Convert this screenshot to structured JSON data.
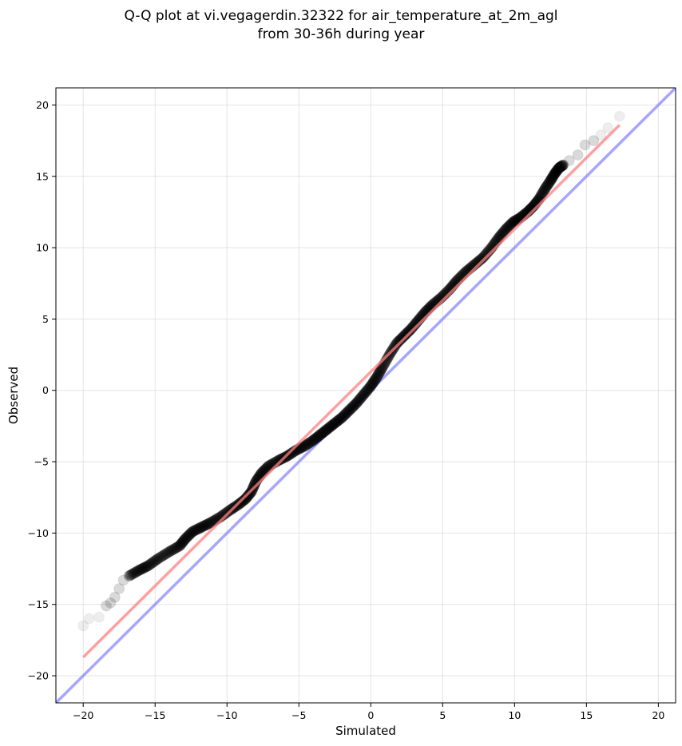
{
  "chart_data": {
    "type": "scatter",
    "title_lines": [
      "Q-Q plot at vi.vegagerdin.32322 for air_temperature_at_2m_agl",
      "from 30-36h during year"
    ],
    "xlabel": "Simulated",
    "ylabel": "Observed",
    "xlim": [
      -21.9,
      21.2
    ],
    "ylim": [
      -21.9,
      21.2
    ],
    "xticks": [
      -20,
      -15,
      -10,
      -5,
      0,
      5,
      10,
      15,
      20
    ],
    "yticks": [
      -20,
      -15,
      -10,
      -5,
      0,
      5,
      10,
      15,
      20
    ],
    "tick_labels": [
      "−20",
      "−15",
      "−10",
      "−5",
      "0",
      "5",
      "10",
      "15",
      "20"
    ],
    "grid": true,
    "series": [
      {
        "kind": "quantile-points",
        "color": "#000000",
        "points": [
          [
            -20.0,
            -16.5
          ],
          [
            -19.6,
            -16.0
          ],
          [
            -18.9,
            -15.9
          ],
          [
            -18.4,
            -15.1
          ],
          [
            -18.1,
            -14.9
          ],
          [
            -17.8,
            -14.5
          ],
          [
            -17.5,
            -13.9
          ],
          [
            -17.2,
            -13.3
          ],
          [
            -16.8,
            -13.0
          ],
          [
            -16.1,
            -12.6
          ],
          [
            -15.5,
            -12.3
          ],
          [
            -14.8,
            -11.8
          ],
          [
            -14.0,
            -11.3
          ],
          [
            -13.3,
            -10.9
          ],
          [
            -12.9,
            -10.4
          ],
          [
            -12.4,
            -9.9
          ],
          [
            -11.8,
            -9.6
          ],
          [
            -11.2,
            -9.3
          ],
          [
            -10.5,
            -8.9
          ],
          [
            -9.8,
            -8.4
          ],
          [
            -9.2,
            -8.0
          ],
          [
            -8.7,
            -7.6
          ],
          [
            -8.3,
            -7.1
          ],
          [
            -8.0,
            -6.4
          ],
          [
            -7.6,
            -5.8
          ],
          [
            -7.1,
            -5.3
          ],
          [
            -6.4,
            -4.9
          ],
          [
            -5.8,
            -4.6
          ],
          [
            -5.2,
            -4.2
          ],
          [
            -4.6,
            -3.9
          ],
          [
            -4.0,
            -3.5
          ],
          [
            -3.5,
            -3.1
          ],
          [
            -3.0,
            -2.7
          ],
          [
            -2.5,
            -2.3
          ],
          [
            -2.0,
            -1.9
          ],
          [
            -1.5,
            -1.4
          ],
          [
            -1.0,
            -0.9
          ],
          [
            -0.5,
            -0.3
          ],
          [
            0.0,
            0.3
          ],
          [
            0.4,
            0.9
          ],
          [
            0.8,
            1.6
          ],
          [
            1.3,
            2.5
          ],
          [
            1.8,
            3.3
          ],
          [
            2.3,
            3.8
          ],
          [
            2.8,
            4.3
          ],
          [
            3.3,
            4.9
          ],
          [
            3.8,
            5.5
          ],
          [
            4.3,
            6.0
          ],
          [
            4.9,
            6.5
          ],
          [
            5.5,
            7.1
          ],
          [
            6.0,
            7.7
          ],
          [
            6.6,
            8.3
          ],
          [
            7.2,
            8.8
          ],
          [
            7.8,
            9.3
          ],
          [
            8.4,
            10.0
          ],
          [
            8.9,
            10.7
          ],
          [
            9.4,
            11.3
          ],
          [
            9.9,
            11.8
          ],
          [
            10.4,
            12.1
          ],
          [
            10.9,
            12.5
          ],
          [
            11.3,
            12.9
          ],
          [
            11.7,
            13.4
          ],
          [
            12.1,
            14.1
          ],
          [
            12.5,
            14.7
          ],
          [
            12.8,
            15.2
          ],
          [
            13.1,
            15.6
          ],
          [
            13.4,
            15.8
          ],
          [
            13.8,
            16.1
          ],
          [
            14.4,
            16.5
          ],
          [
            14.9,
            17.2
          ],
          [
            15.5,
            17.5
          ],
          [
            16.0,
            17.9
          ],
          [
            16.5,
            18.4
          ],
          [
            17.3,
            19.2
          ]
        ]
      },
      {
        "kind": "fit-line",
        "color": "#ff8080",
        "points": [
          [
            -20.0,
            -18.7
          ],
          [
            17.3,
            18.6
          ]
        ]
      },
      {
        "kind": "identity-line",
        "color": "#8080ff",
        "points": [
          [
            -21.9,
            -21.9
          ],
          [
            21.2,
            21.2
          ]
        ]
      }
    ]
  }
}
